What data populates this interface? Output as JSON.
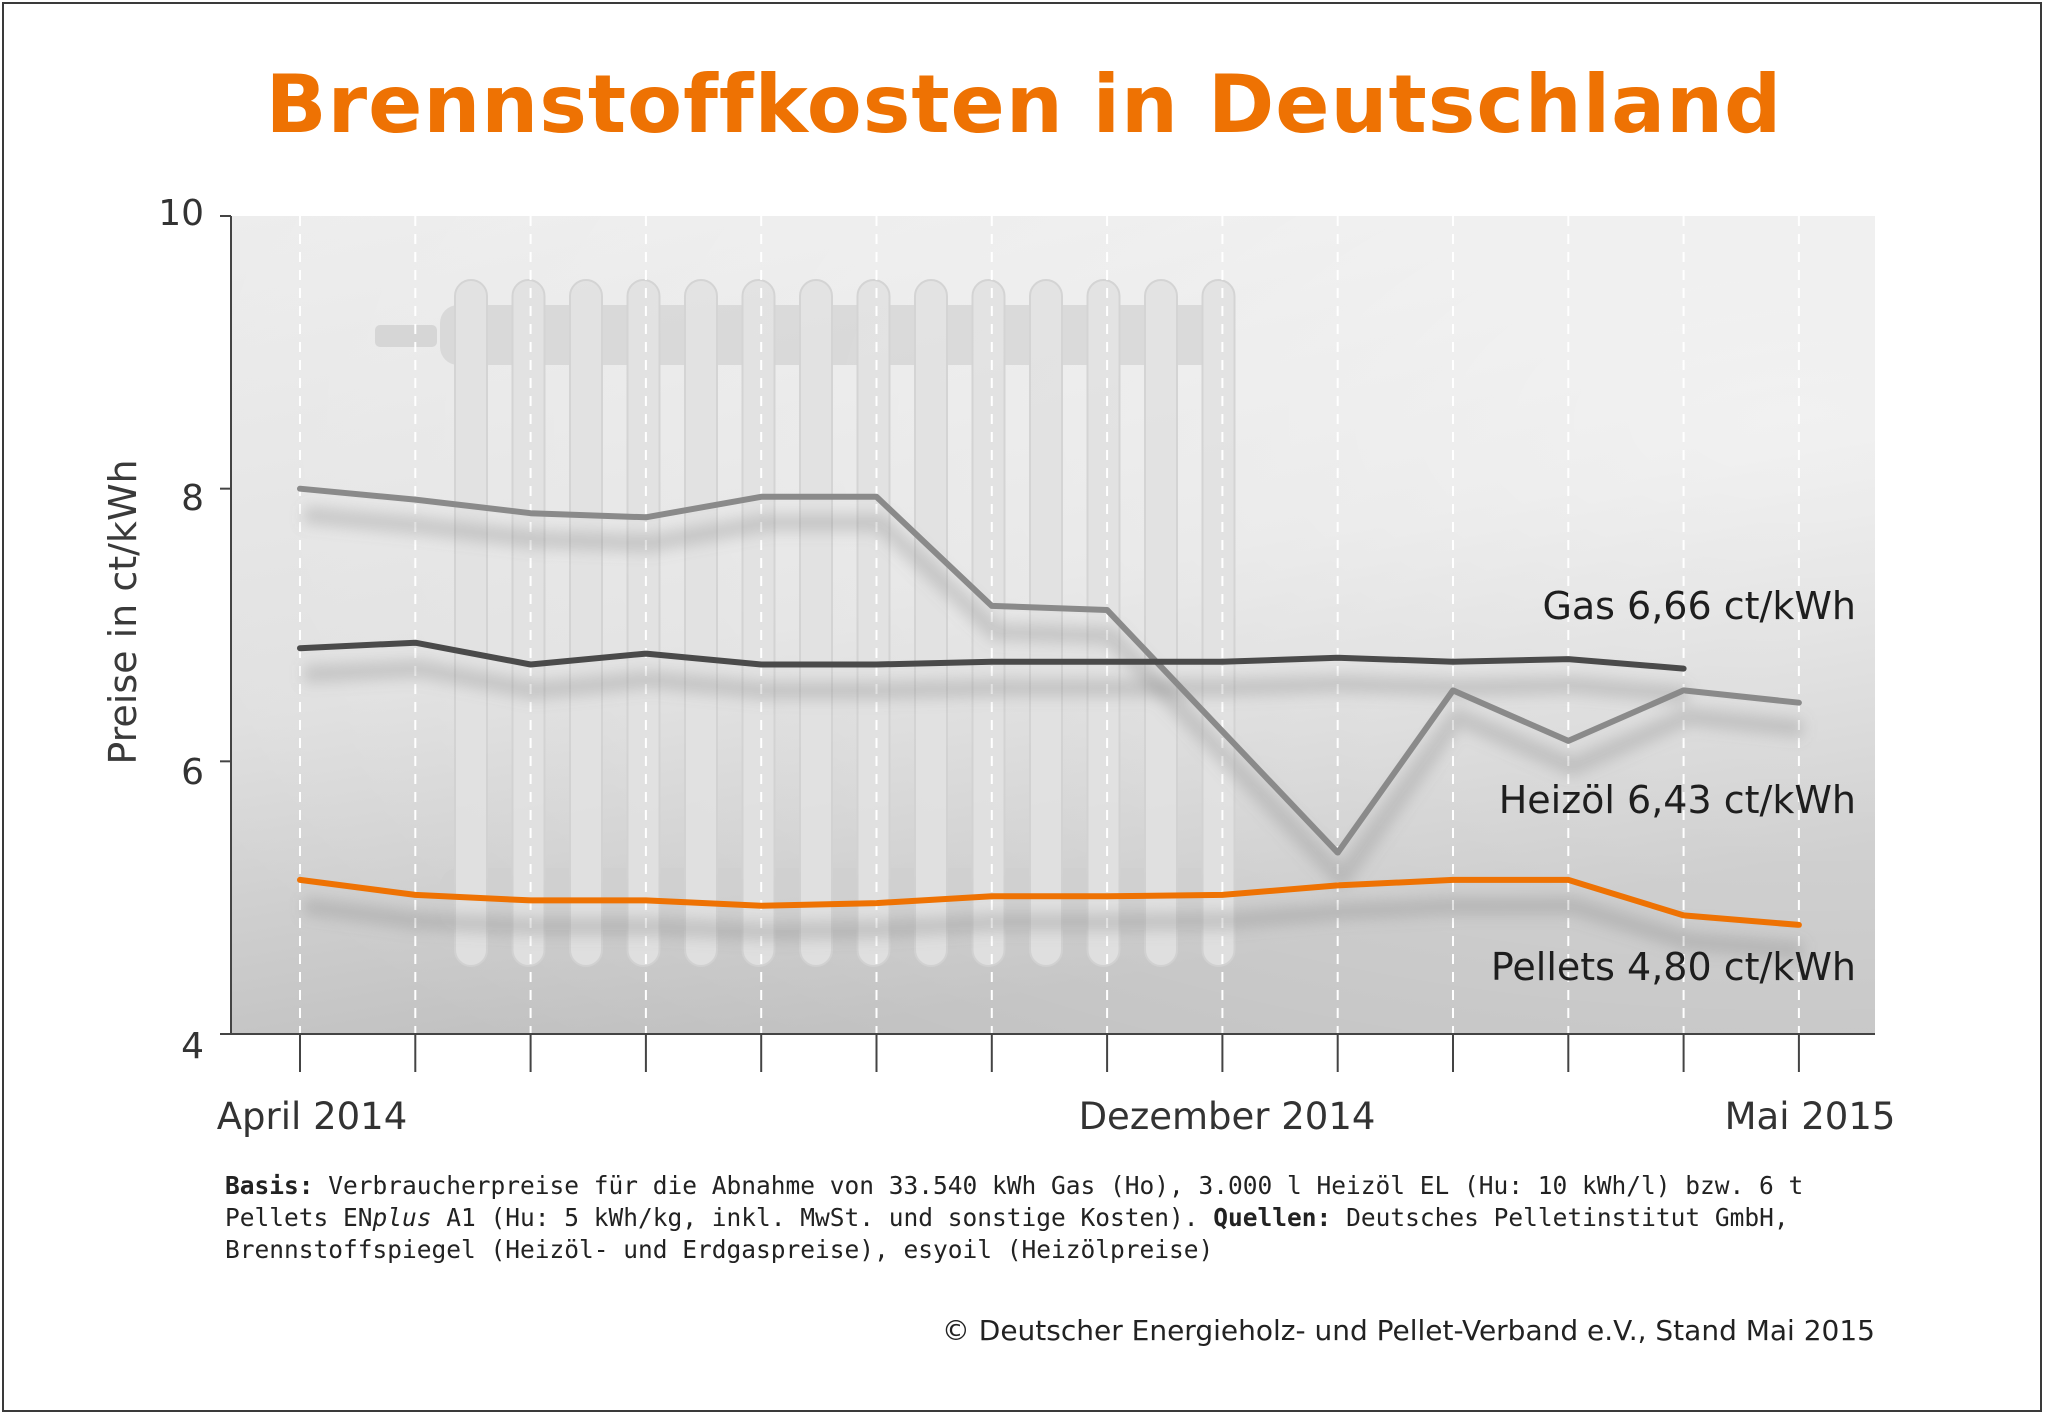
{
  "title": "Brennstoffkosten in Deutschland",
  "chart_data": {
    "type": "line",
    "title": "Brennstoffkosten in Deutschland",
    "ylabel": "Preise in ct/kWh",
    "xlabel": "",
    "ylim": [
      4,
      10
    ],
    "yticks": [
      4,
      6,
      8,
      10
    ],
    "x_labels": [
      "April 2014",
      "Dezember 2014",
      "Mai 2015"
    ],
    "categories": [
      "April 2014",
      "",
      "",
      "",
      "",
      "",
      "",
      "",
      "Dezember 2014",
      "",
      "",
      "",
      "",
      "Mai 2015"
    ],
    "grid": "vertical-dashed",
    "series": [
      {
        "name": "Heizöl",
        "label": "Heizöl 6,43 ct/kWh",
        "color": "#8a8a8a",
        "values": [
          8.0,
          7.92,
          7.82,
          7.79,
          7.94,
          7.94,
          7.14,
          7.11,
          6.22,
          5.33,
          6.52,
          6.15,
          6.52,
          6.43
        ]
      },
      {
        "name": "Gas",
        "label": "Gas 6,66 ct/kWh",
        "color": "#4a4a4a",
        "values": [
          6.83,
          6.87,
          6.71,
          6.79,
          6.71,
          6.71,
          6.73,
          6.73,
          6.73,
          6.76,
          6.73,
          6.75,
          6.68,
          null
        ]
      },
      {
        "name": "Pellets",
        "label": "Pellets 4,80 ct/kWh",
        "color": "#ee7203",
        "values": [
          5.13,
          5.02,
          4.98,
          4.98,
          4.94,
          4.96,
          5.01,
          5.01,
          5.02,
          5.09,
          5.13,
          5.13,
          4.87,
          4.8
        ]
      }
    ]
  },
  "footer": {
    "basis_label": "Basis:",
    "basis_text_1": " Verbraucherpreise für die Abnahme von 33.540 kWh Gas (Ho), 3.000 l Heizöl EL (Hu: 10 kWh/l) bzw. 6 t Pellets EN",
    "basis_plus": "plus",
    "basis_text_2": " A1 (Hu: 5 kWh/kg, inkl. MwSt. und sonstige Kosten). ",
    "sources_label": "Quellen:",
    "sources_text": " Deutsches Pelletinstitut GmbH, Brennstoffspiegel (Heizöl- und Erdgaspreise), esyoil (Heizölpreise)",
    "copyright": "© Deutscher Energieholz- und Pellet-Verband e.V., Stand Mai 2015"
  }
}
